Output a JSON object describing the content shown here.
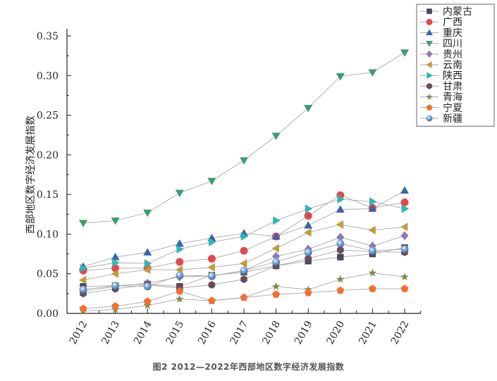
{
  "caption": "图2   2012—2022年西部地区数字经济发展指数",
  "chart_data": {
    "type": "line",
    "title": "",
    "xlabel": "",
    "ylabel": "西部地区数字经济发展指数",
    "ylim": [
      0,
      0.35
    ],
    "yticks": [
      "0.00",
      "0.05",
      "0.10",
      "0.15",
      "0.20",
      "0.25",
      "0.30",
      "0.35"
    ],
    "categories": [
      "2012",
      "2013",
      "2014",
      "2015",
      "2016",
      "2017",
      "2018",
      "2019",
      "2020",
      "2021",
      "2022"
    ],
    "grid": false,
    "legend_position": "top-right",
    "series": [
      {
        "name": "内蒙古",
        "marker": "square",
        "color": "#4a4a55",
        "values": [
          0.034,
          0.035,
          0.037,
          0.034,
          0.048,
          0.052,
          0.06,
          0.066,
          0.071,
          0.075,
          0.083
        ]
      },
      {
        "name": "广西",
        "marker": "circle",
        "color": "#e04a4f",
        "values": [
          0.054,
          0.057,
          0.057,
          0.065,
          0.069,
          0.079,
          0.097,
          0.123,
          0.149,
          0.133,
          0.14
        ]
      },
      {
        "name": "重庆",
        "marker": "triangle-up",
        "color": "#3a64a8",
        "values": [
          0.059,
          0.071,
          0.077,
          0.088,
          0.095,
          0.101,
          0.097,
          0.111,
          0.131,
          0.132,
          0.155
        ]
      },
      {
        "name": "四川",
        "marker": "triangle-down",
        "color": "#3d9a72",
        "values": [
          0.114,
          0.117,
          0.127,
          0.152,
          0.167,
          0.193,
          0.224,
          0.259,
          0.299,
          0.304,
          0.329
        ]
      },
      {
        "name": "贵州",
        "marker": "diamond",
        "color": "#8e79b8",
        "values": [
          0.028,
          0.034,
          0.038,
          0.046,
          0.047,
          0.054,
          0.072,
          0.081,
          0.096,
          0.085,
          0.098
        ]
      },
      {
        "name": "云南",
        "marker": "triangle-left",
        "color": "#c49a3c",
        "values": [
          0.042,
          0.05,
          0.055,
          0.055,
          0.058,
          0.063,
          0.082,
          0.102,
          0.112,
          0.105,
          0.109
        ]
      },
      {
        "name": "陕西",
        "marker": "triangle-right",
        "color": "#2fb5b5",
        "values": [
          0.057,
          0.064,
          0.063,
          0.081,
          0.09,
          0.097,
          0.117,
          0.132,
          0.144,
          0.141,
          0.132
        ]
      },
      {
        "name": "甘肃",
        "marker": "hexagon",
        "color": "#6b4a5a",
        "values": [
          0.025,
          0.031,
          0.036,
          0.032,
          0.036,
          0.043,
          0.06,
          0.069,
          0.08,
          0.078,
          0.077
        ]
      },
      {
        "name": "青海",
        "marker": "star",
        "color": "#7f8a4e",
        "values": [
          0.003,
          0.005,
          0.01,
          0.018,
          0.016,
          0.02,
          0.034,
          0.03,
          0.043,
          0.051,
          0.046
        ]
      },
      {
        "name": "宁夏",
        "marker": "pentagon",
        "color": "#f07030",
        "values": [
          0.006,
          0.009,
          0.015,
          0.028,
          0.016,
          0.02,
          0.024,
          0.026,
          0.029,
          0.031,
          0.031
        ]
      },
      {
        "name": "新疆",
        "marker": "sphere",
        "color": "#5b8fc8",
        "values": [
          0.03,
          0.035,
          0.034,
          0.048,
          0.047,
          0.054,
          0.065,
          0.077,
          0.088,
          0.079,
          0.081
        ]
      }
    ]
  }
}
